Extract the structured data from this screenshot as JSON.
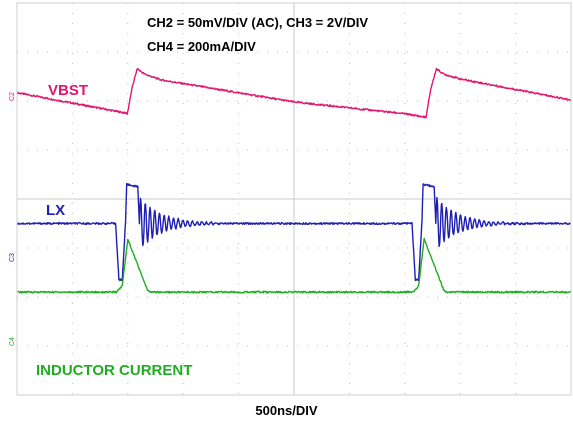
{
  "chart_data": {
    "type": "line",
    "settings": [
      "CH2 = 50mV/DIV (AC), CH3 = 2V/DIV",
      "CH4 = 200mA/DIV"
    ],
    "xlabel": "500ns/DIV",
    "divisions": {
      "x": 10,
      "y": 8
    },
    "xlim_div": [
      0,
      10
    ],
    "ylim_div": [
      -4,
      4
    ],
    "grid": true,
    "series": [
      {
        "name": "VBST",
        "marker": "C2",
        "color": "#e0176f",
        "points_div": [
          [
            0,
            2.17
          ],
          [
            1.98,
            1.75
          ],
          [
            1.99,
            1.73
          ],
          [
            2.08,
            2.28
          ],
          [
            2.17,
            2.66
          ],
          [
            2.3,
            2.55
          ],
          [
            2.6,
            2.43
          ],
          [
            5.0,
            1.98
          ],
          [
            7.0,
            1.74
          ],
          [
            7.37,
            1.67
          ],
          [
            7.38,
            1.65
          ],
          [
            7.47,
            2.25
          ],
          [
            7.57,
            2.66
          ],
          [
            7.7,
            2.55
          ],
          [
            8.0,
            2.45
          ],
          [
            10,
            2.02
          ]
        ]
      },
      {
        "name": "LX",
        "marker": "C3",
        "color": "#1f1fb4",
        "points_div": [
          [
            0,
            -0.5
          ],
          [
            1.78,
            -0.5
          ],
          [
            1.84,
            -1.65
          ],
          [
            1.9,
            -1.65
          ],
          [
            1.96,
            -0.45
          ],
          [
            1.98,
            0.3
          ],
          [
            2.05,
            0.28
          ],
          [
            2.18,
            0.25
          ],
          [
            2.21,
            -0.5
          ],
          [
            7.13,
            -0.5
          ],
          [
            7.19,
            -1.65
          ],
          [
            7.25,
            -1.65
          ],
          [
            7.31,
            -0.45
          ],
          [
            7.33,
            0.3
          ],
          [
            7.4,
            0.28
          ],
          [
            7.53,
            0.25
          ],
          [
            7.56,
            -0.5
          ],
          [
            10,
            -0.5
          ]
        ]
      },
      {
        "name": "INDUCTOR CURRENT",
        "marker": "C4",
        "color": "#1fae1f",
        "points_div": [
          [
            0,
            -1.9
          ],
          [
            1.8,
            -1.9
          ],
          [
            1.9,
            -1.77
          ],
          [
            2.0,
            -0.82
          ],
          [
            2.35,
            -1.85
          ],
          [
            2.4,
            -1.9
          ],
          [
            7.15,
            -1.9
          ],
          [
            7.25,
            -1.77
          ],
          [
            7.35,
            -0.82
          ],
          [
            7.7,
            -1.85
          ],
          [
            7.75,
            -1.9
          ],
          [
            10,
            -1.9
          ]
        ]
      }
    ]
  }
}
